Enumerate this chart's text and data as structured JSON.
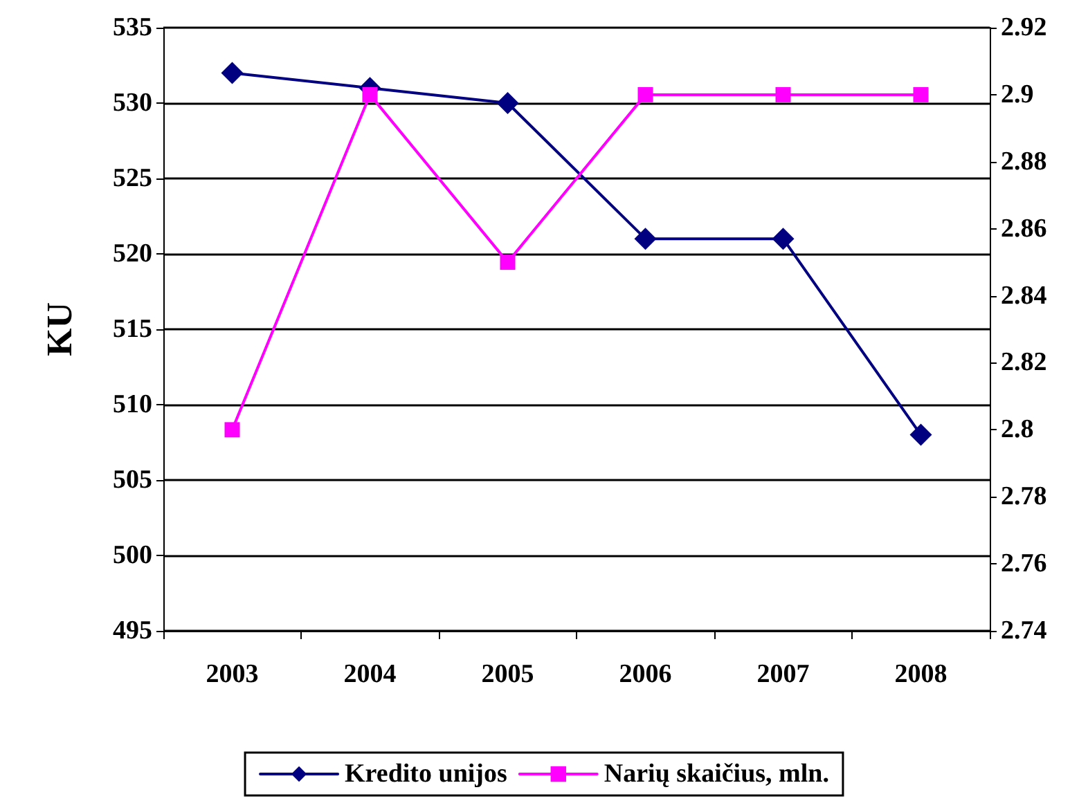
{
  "chart_data": {
    "type": "line",
    "ylabel": "KU",
    "categories": [
      "2003",
      "2004",
      "2005",
      "2006",
      "2007",
      "2008"
    ],
    "series": [
      {
        "name": "Kredito unijos",
        "color": "#000080",
        "marker": "diamond",
        "values": [
          532,
          531,
          530,
          521,
          521,
          508
        ]
      },
      {
        "name": "Narių skaičius, mln.",
        "color": "#ff00ff",
        "marker": "square",
        "axis": "y2",
        "values": [
          2.8,
          2.9,
          2.85,
          2.9,
          2.9,
          2.9
        ]
      }
    ],
    "ylim": [
      495,
      535
    ],
    "yticks": [
      495,
      500,
      505,
      510,
      515,
      520,
      525,
      530,
      535
    ],
    "y2lim": [
      2.74,
      2.92
    ],
    "y2ticks": [
      2.74,
      2.76,
      2.78,
      2.8,
      2.82,
      2.84,
      2.86,
      2.88,
      2.9,
      2.92
    ],
    "grid": "y",
    "legend": "bottom",
    "line_style": "solid"
  }
}
